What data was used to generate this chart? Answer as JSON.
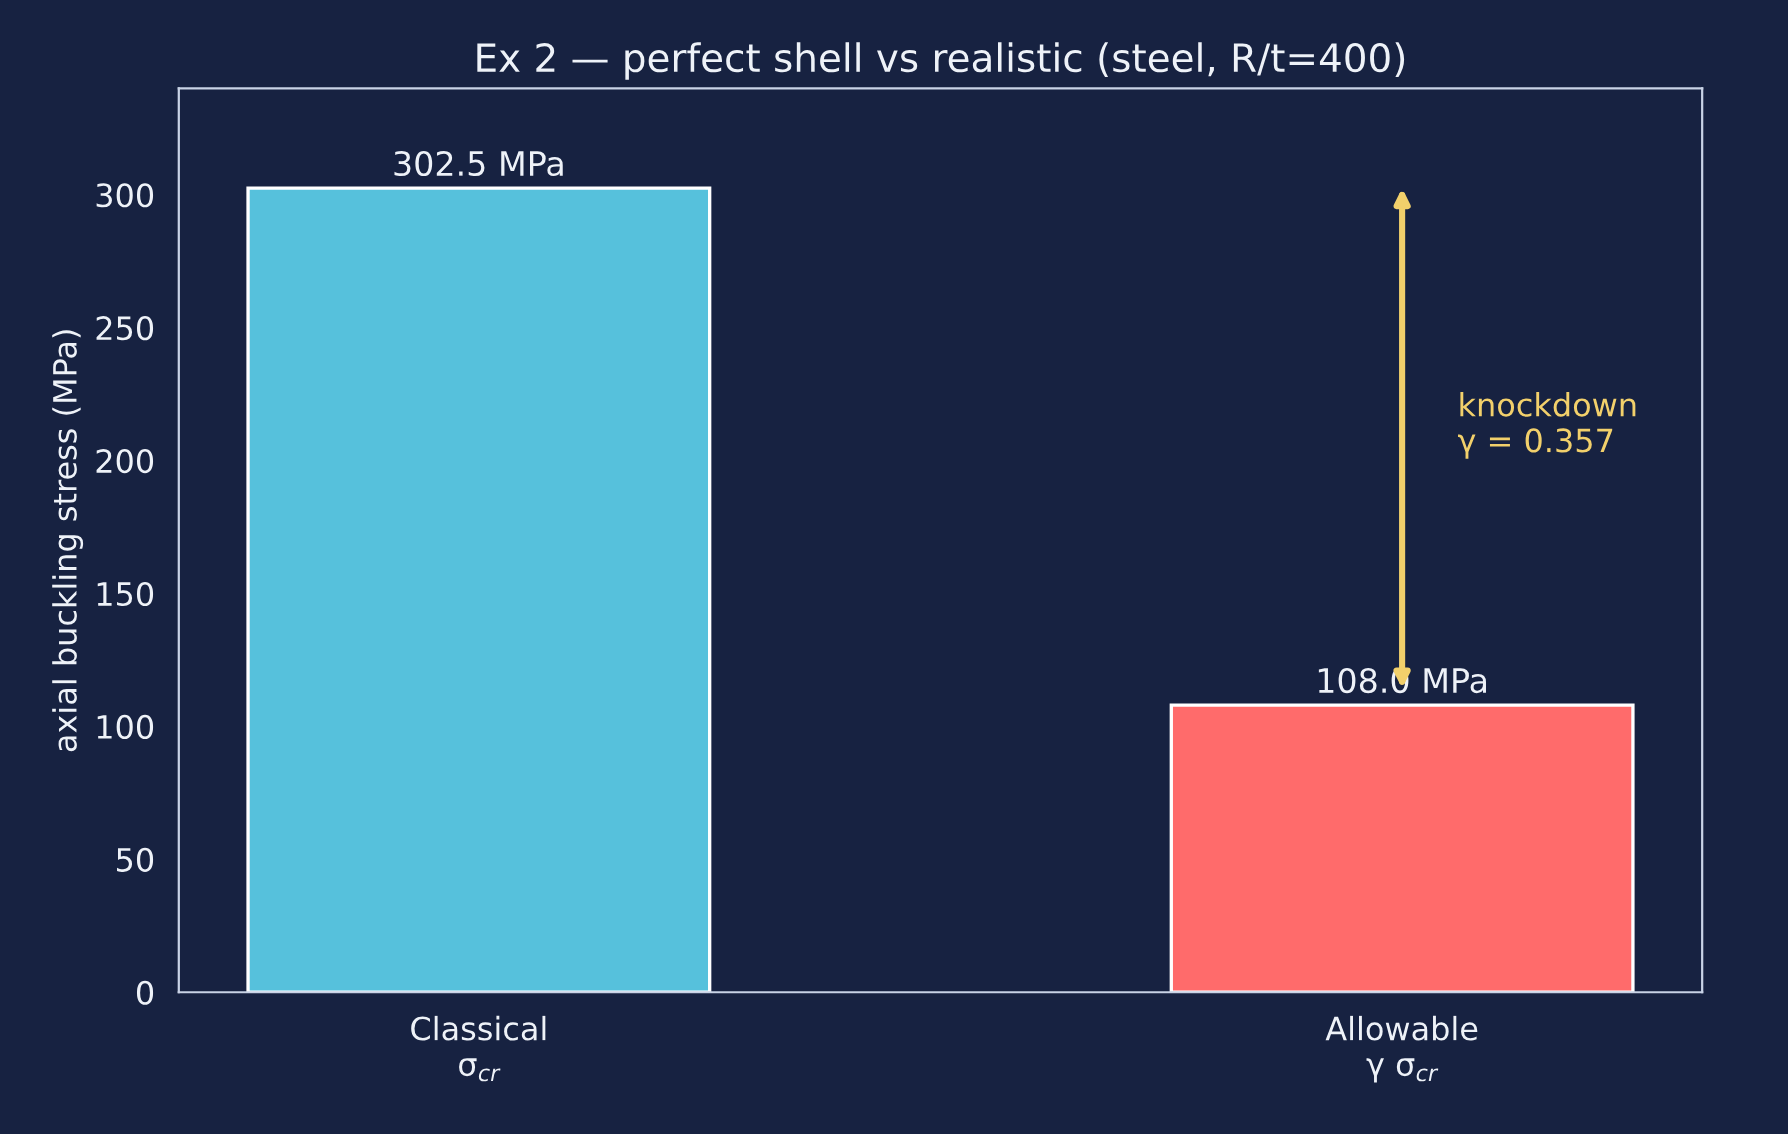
{
  "chart_data": {
    "type": "bar",
    "title": "Ex 2 — perfect shell vs realistic (steel, R/t=400)",
    "ylabel": "axial buckling stress (MPa)",
    "categories": [
      "Classical\nσ$_{cr}$",
      "Allowable\nγ σ$_{cr}$"
    ],
    "values": [
      302.5,
      108.0
    ],
    "colors": [
      "#56c1dc",
      "#ff6b6b"
    ],
    "value_labels": [
      "302.5 MPa",
      "108.0 MPa"
    ],
    "annotations": [
      "knockdown\nγ = 0.357"
    ],
    "ylim": [
      0,
      340
    ],
    "yticks": [
      0,
      50,
      100,
      150,
      200,
      250,
      300
    ],
    "grid": false
  }
}
